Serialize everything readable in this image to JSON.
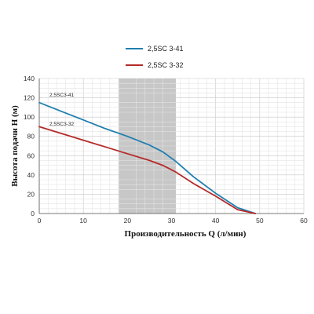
{
  "chart_data": {
    "type": "line",
    "title": "",
    "xlabel": "Производительность Q (л/мин)",
    "ylabel": "Высота подачи H (м)",
    "xlim": [
      0,
      60
    ],
    "ylim": [
      0,
      140
    ],
    "xticks": [
      0,
      10,
      20,
      30,
      40,
      50,
      60
    ],
    "yticks": [
      0,
      20,
      40,
      60,
      80,
      100,
      120,
      140
    ],
    "grid": true,
    "legend_position": "top-center",
    "highlight_band": {
      "x_from": 18,
      "x_to": 31,
      "color": "#bdbdbd"
    },
    "series": [
      {
        "name": "2,5SC 3-41",
        "annotation": "2,5SC3-41",
        "color": "#1f7fb0",
        "x": [
          0,
          5,
          10,
          15,
          20,
          25,
          28,
          31,
          35,
          40,
          45,
          49
        ],
        "y": [
          115,
          106,
          97,
          88,
          80,
          71,
          64,
          54,
          38,
          21,
          6,
          0
        ]
      },
      {
        "name": "2,5SC 3-32",
        "annotation": "2,5SC3-32",
        "color": "#b52a2a",
        "x": [
          0,
          5,
          10,
          15,
          20,
          25,
          28,
          31,
          35,
          40,
          45,
          49
        ],
        "y": [
          90,
          83,
          76,
          69,
          62,
          55,
          50,
          43,
          31,
          18,
          4,
          0
        ]
      }
    ]
  }
}
